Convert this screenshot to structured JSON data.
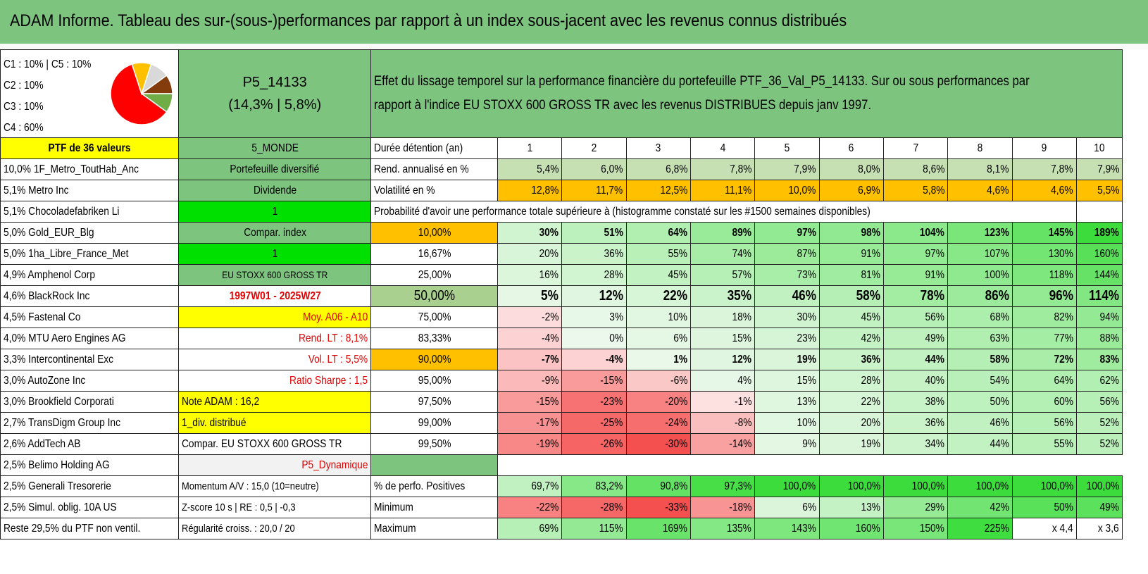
{
  "title": "ADAM Informe. Tableau des sur-(sous-)performances par rapport à un index sous-jacent avec les revenus connus distribués",
  "legend": {
    "l1": "C1 : 10% | C5 : 10%",
    "l2": "C2 : 10%",
    "l3": "C3 : 10%",
    "l4": "C4 : 60%"
  },
  "pie": {
    "slices": [
      {
        "name": "C1",
        "value": 10,
        "color": "#70ad47"
      },
      {
        "name": "C2",
        "value": 10,
        "color": "#843c0c"
      },
      {
        "name": "C3",
        "value": 10,
        "color": "#d9d9d9"
      },
      {
        "name": "C4",
        "value": 60,
        "color": "#ff0000"
      },
      {
        "name": "C5",
        "value": 10,
        "color": "#ffc000"
      }
    ]
  },
  "portfolio": {
    "code": "P5_14133",
    "perf": "(14,3% | 5,8%)",
    "description_1": "Effet du lissage temporel sur la performance financière du portefeuille PTF_36_Val_P5_14133. Sur ou sous performances par",
    "description_2": "rapport à l'indice EU STOXX 600 GROSS TR avec les revenus DISTRIBUES depuis janv 1997."
  },
  "holdings": [
    "10,0% 1F_Metro_ToutHab_Anc",
    "5,1% Metro Inc",
    "5,1% Chocoladefabriken Li",
    "5,0% Gold_EUR_Blg",
    "5,0% 1ha_Libre_France_Met",
    "4,9% Amphenol Corp",
    "4,6% BlackRock Inc",
    "4,5% Fastenal Co",
    "4,0% MTU Aero Engines AG",
    "3,3% Intercontinental Exc",
    "3,0% AutoZone Inc",
    "3,0% Brookfield Corporati",
    "2,7% TransDigm Group Inc",
    "2,6% AddTech AB",
    "2,5% Belimo Holding AG",
    "2,5% Generali Tresorerie",
    "2,5% Simul. oblig. 10A US",
    "Reste 29,5% du PTF non ventil."
  ],
  "header_row": {
    "ptf_label": "PTF de 36 valeurs",
    "monde": "5_MONDE",
    "duree": "Durée détention (an)",
    "years": [
      "1",
      "2",
      "3",
      "4",
      "5",
      "6",
      "7",
      "8",
      "9",
      "10"
    ]
  },
  "info": {
    "diversifie": "Portefeuille diversifié",
    "dividende": "Dividende",
    "one_a": "1",
    "compar": "Compar. index",
    "one_b": "1",
    "index": "EU STOXX 600 GROSS TR",
    "period": "1997W01 - 2025W27",
    "moy": "Moy. A06 - A10",
    "rend_lt": "Rend. LT : 8,1%",
    "vol_lt": "Vol. LT : 5,5%",
    "sharpe": "Ratio Sharpe : 1,5",
    "note": "Note ADAM : 16,2",
    "div": "1_div. distribué",
    "compar_full": "Compar. EU STOXX 600 GROSS TR",
    "profile": "P5_Dynamique",
    "momentum": "Momentum A/V : 15,0 (10=neutre)",
    "zscore": "Z-score 10 s | RE : 0,5 | -0,3",
    "regularite": "Régularité croiss. : 20,0 / 20"
  },
  "rend": {
    "label": "Rend. annualisé en %",
    "values": [
      "5,4%",
      "6,0%",
      "6,8%",
      "7,8%",
      "7,9%",
      "8,0%",
      "8,6%",
      "8,1%",
      "7,8%",
      "7,9%"
    ]
  },
  "vol": {
    "label": "Volatilité en %",
    "values": [
      "12,8%",
      "11,7%",
      "12,5%",
      "11,1%",
      "10,0%",
      "6,9%",
      "5,8%",
      "4,6%",
      "4,6%",
      "5,5%"
    ]
  },
  "prob_title": "Probabilité d'avoir une performance totale supérieure à (histogramme constaté sur les #1500 semaines disponibles)",
  "prob_rows": [
    {
      "p": "10,00%",
      "v": [
        "30%",
        "51%",
        "64%",
        "89%",
        "97%",
        "98%",
        "104%",
        "123%",
        "145%",
        "189%"
      ]
    },
    {
      "p": "16,67%",
      "v": [
        "20%",
        "36%",
        "55%",
        "74%",
        "87%",
        "91%",
        "97%",
        "107%",
        "130%",
        "160%"
      ]
    },
    {
      "p": "25,00%",
      "v": [
        "16%",
        "28%",
        "45%",
        "57%",
        "73%",
        "81%",
        "91%",
        "100%",
        "118%",
        "144%"
      ]
    },
    {
      "p": "50,00%",
      "v": [
        "5%",
        "12%",
        "22%",
        "35%",
        "46%",
        "58%",
        "78%",
        "86%",
        "96%",
        "114%"
      ]
    },
    {
      "p": "75,00%",
      "v": [
        "-2%",
        "3%",
        "10%",
        "18%",
        "30%",
        "45%",
        "56%",
        "68%",
        "82%",
        "94%"
      ]
    },
    {
      "p": "83,33%",
      "v": [
        "-4%",
        "0%",
        "6%",
        "15%",
        "23%",
        "42%",
        "49%",
        "63%",
        "77%",
        "88%"
      ]
    },
    {
      "p": "90,00%",
      "v": [
        "-7%",
        "-4%",
        "1%",
        "12%",
        "19%",
        "36%",
        "44%",
        "58%",
        "72%",
        "83%"
      ]
    },
    {
      "p": "95,00%",
      "v": [
        "-9%",
        "-15%",
        "-6%",
        "4%",
        "15%",
        "28%",
        "40%",
        "54%",
        "64%",
        "62%"
      ]
    },
    {
      "p": "97,50%",
      "v": [
        "-15%",
        "-23%",
        "-20%",
        "-1%",
        "13%",
        "22%",
        "38%",
        "50%",
        "60%",
        "56%"
      ]
    },
    {
      "p": "99,00%",
      "v": [
        "-17%",
        "-25%",
        "-24%",
        "-8%",
        "10%",
        "20%",
        "36%",
        "46%",
        "56%",
        "52%"
      ]
    },
    {
      "p": "99,50%",
      "v": [
        "-19%",
        "-26%",
        "-30%",
        "-14%",
        "9%",
        "19%",
        "34%",
        "44%",
        "55%",
        "52%"
      ]
    }
  ],
  "pos": {
    "label": "% de perfo. Positives",
    "values": [
      "69,7%",
      "83,2%",
      "90,8%",
      "97,3%",
      "100,0%",
      "100,0%",
      "100,0%",
      "100,0%",
      "100,0%",
      "100,0%"
    ]
  },
  "min": {
    "label": "Minimum",
    "values": [
      "-22%",
      "-28%",
      "-33%",
      "-18%",
      "6%",
      "13%",
      "29%",
      "42%",
      "50%",
      "49%"
    ]
  },
  "max": {
    "label": "Maximum",
    "values": [
      "69%",
      "115%",
      "169%",
      "135%",
      "143%",
      "160%",
      "150%",
      "225%",
      "x 4,4",
      "x 3,6"
    ]
  }
}
